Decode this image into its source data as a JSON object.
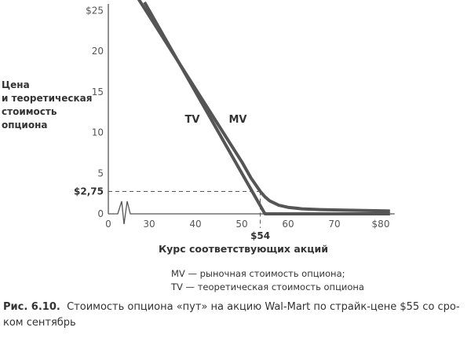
{
  "chart_data": {
    "type": "line",
    "title": "",
    "xlabel": "Курс соответствующих акций",
    "ylabel": "Цена и теоретическая стоимость опциона",
    "ylabel_lines": [
      "Цена",
      "и теоретическая",
      "стоимость",
      "опциона"
    ],
    "xlim": [
      26,
      83
    ],
    "ylim": [
      0,
      26
    ],
    "x_ticks": [
      {
        "v": 30,
        "label": "30"
      },
      {
        "v": 40,
        "label": "40"
      },
      {
        "v": 50,
        "label": "50"
      },
      {
        "v": 60,
        "label": "60"
      },
      {
        "v": 70,
        "label": "70"
      },
      {
        "v": 80,
        "label": "$80"
      }
    ],
    "x_origin_label": "0",
    "y_ticks": [
      {
        "v": 0,
        "label": "0"
      },
      {
        "v": 5,
        "label": "5"
      },
      {
        "v": 10,
        "label": "10"
      },
      {
        "v": 15,
        "label": "15"
      },
      {
        "v": 20,
        "label": "20"
      },
      {
        "v": 25,
        "label": "$25"
      }
    ],
    "series": [
      {
        "name": "TV",
        "x": [
          29,
          55,
          82
        ],
        "y": [
          26,
          0,
          0
        ]
      },
      {
        "name": "MV",
        "x": [
          27.6,
          50,
          52,
          54,
          55,
          56,
          58,
          60,
          63,
          67,
          72,
          82
        ],
        "y": [
          26.5,
          6.4,
          4.4,
          2.75,
          2.1,
          1.6,
          1.05,
          0.8,
          0.62,
          0.52,
          0.45,
          0.35
        ]
      }
    ],
    "annotations": {
      "y_marker": {
        "v": 2.75,
        "label": "$2,75"
      },
      "x_marker": {
        "v": 54,
        "label": "$54"
      },
      "tv_label": "TV",
      "mv_label": "MV"
    },
    "grid": false,
    "legend_lines": [
      "MV — рыночная стоимость опциона;",
      "TV — теоретическая стоимость опциона"
    ]
  },
  "caption": {
    "number": "Рис. 6.10.",
    "text": "Стоимость опциона «пут» на акцию Wal-Mart по страйк-цене $55 со сро-ком сентябрь"
  }
}
